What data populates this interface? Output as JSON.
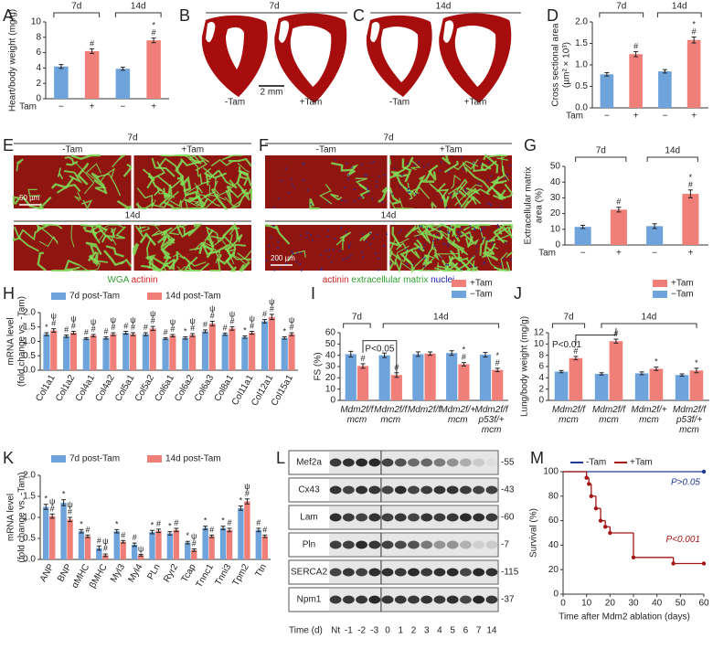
{
  "panel_labels": [
    "A",
    "B",
    "C",
    "D",
    "E",
    "F",
    "G",
    "H",
    "I",
    "J",
    "K",
    "L",
    "M"
  ],
  "hearts": [
    {
      "time": "7d",
      "scale": "2 mm",
      "labels": [
        "-Tam",
        "+Tam"
      ]
    },
    {
      "time": "14d",
      "labels": [
        "-Tam",
        "+Tam"
      ]
    }
  ],
  "micrographs": [
    {
      "time_top": "7d",
      "time_bottom": "14d",
      "columns": [
        "-Tam",
        "+Tam"
      ],
      "scale": "50 µm",
      "stain": [
        {
          "text": "WGA",
          "color": "#2e9e2e"
        },
        {
          "text": "actinin",
          "color": "#d02020"
        }
      ]
    },
    {
      "time_top": "7d",
      "time_bottom": "14d",
      "columns": [
        "-Tam",
        "+Tam"
      ],
      "scale": "200 µm",
      "stain": [
        {
          "text": "actinin",
          "color": "#d02020"
        },
        {
          "text": "extracellular matrix",
          "color": "#2e9e2e"
        },
        {
          "text": "nuclei",
          "color": "#2020b0"
        }
      ]
    }
  ],
  "blot": {
    "rows": [
      [
        "Mef2a",
        "-55"
      ],
      [
        "Cx43",
        "-43"
      ],
      [
        "Lam",
        "-60"
      ],
      [
        "Pln",
        "-7"
      ],
      [
        "SERCA2",
        "-115"
      ],
      [
        "Npm1",
        "-37"
      ]
    ],
    "x_label": "Time (d)",
    "lanes": [
      "Nt",
      "-1",
      "-2",
      "-3",
      "0",
      "1",
      "2",
      "3",
      "4",
      "5",
      "6",
      "7",
      "14"
    ]
  },
  "chart_data": [
    {
      "type": "bar",
      "y_label": [
        "Heart/body weight (mg/g)"
      ],
      "ylim": [
        0,
        10
      ],
      "yticks": [
        0,
        2,
        4,
        6,
        8,
        10
      ],
      "categories": [
        "−",
        "+",
        "−",
        "+"
      ],
      "x_row_label": "Tam",
      "groups": [
        "7d",
        "14d"
      ],
      "values": [
        4.2,
        6.2,
        3.9,
        7.6
      ],
      "errors": [
        0.25,
        0.3,
        0.2,
        0.3
      ],
      "annotations": [
        null,
        "#",
        null,
        "*#"
      ],
      "colors": [
        "#6fa3db",
        "#f07f7a",
        "#6fa3db",
        "#f07f7a"
      ]
    },
    {
      "type": "bar",
      "y_label": [
        "Cross sectional area",
        "(µm² × 10³)"
      ],
      "ylim": [
        0,
        2
      ],
      "yticks": [
        {
          "value": 0,
          "label": "0.0"
        },
        0.5,
        {
          "value": 1,
          "label": "1.0"
        },
        1.5,
        {
          "value": 2,
          "label": "2.0"
        }
      ],
      "categories": [
        "−",
        "+",
        "−",
        "+"
      ],
      "x_row_label": "Tam",
      "groups": [
        "7d",
        "14d"
      ],
      "values": [
        0.78,
        1.25,
        0.85,
        1.58
      ],
      "errors": [
        0.04,
        0.06,
        0.04,
        0.07
      ],
      "annotations": [
        null,
        "#",
        null,
        "*#"
      ],
      "colors": [
        "#6fa3db",
        "#f07f7a",
        "#6fa3db",
        "#f07f7a"
      ]
    },
    {
      "type": "bar",
      "y_label": [
        "Extracellular matrix",
        "area (%)"
      ],
      "ylim": [
        0,
        50
      ],
      "yticks": [
        0,
        10,
        20,
        30,
        40,
        50
      ],
      "categories": [
        "−",
        "+",
        "−",
        "+"
      ],
      "x_row_label": "Tam",
      "groups": [
        "7d",
        "14d"
      ],
      "values": [
        11.5,
        22.5,
        12,
        32.5
      ],
      "errors": [
        1,
        1.5,
        1.5,
        2.5
      ],
      "annotations": [
        null,
        "#",
        null,
        "*#"
      ],
      "colors": [
        "#6fa3db",
        "#f07f7a",
        "#6fa3db",
        "#f07f7a"
      ]
    },
    {
      "type": "bar",
      "y_label": [
        "mRNA level",
        "(fold change vs. -Tam)"
      ],
      "ylim": [
        0,
        2
      ],
      "yticks": [
        {
          "value": 0,
          "label": "0.0"
        },
        0.5,
        {
          "value": 1,
          "label": "1.0"
        },
        1.5,
        {
          "value": 2,
          "label": "2.0"
        }
      ],
      "categories": [
        "Col1a1",
        "Col1a2",
        "Col4a1",
        "Col4a2",
        "Col5a1",
        "Col5a2",
        "Col6a1",
        "Col6a2",
        "Col6a3",
        "Col8a1",
        "Col11a1",
        "Col12a1",
        "Col15a1"
      ],
      "series": [
        {
          "name": "7d post-Tam",
          "color": "#6fa3db",
          "values": [
            1.25,
            1.18,
            1.1,
            1.12,
            1.3,
            1.25,
            1.1,
            1.12,
            1.35,
            1.25,
            1.15,
            1.7,
            1.12
          ],
          "errors": [
            0.05,
            0.04,
            0.03,
            0.04,
            0.05,
            0.05,
            0.03,
            0.04,
            0.05,
            0.04,
            0.04,
            0.06,
            0.04
          ],
          "annotations": [
            "*",
            "#",
            "#",
            "#",
            "#",
            "#",
            "#",
            "*",
            "#",
            "#",
            "*",
            "#",
            "*"
          ]
        },
        {
          "name": "14d post-Tam",
          "color": "#f07f7a",
          "values": [
            1.38,
            1.3,
            1.2,
            1.25,
            1.25,
            1.45,
            1.2,
            1.22,
            1.62,
            1.45,
            1.3,
            1.85,
            1.25
          ],
          "errors": [
            0.06,
            0.05,
            0.04,
            0.05,
            0.05,
            0.07,
            0.04,
            0.05,
            0.08,
            0.06,
            0.05,
            0.09,
            0.05
          ],
          "annotations": [
            "ψ#",
            "ψ#",
            "ψ#",
            "ψ#",
            "ψ#",
            "ψ#",
            "ψ#",
            "ψ#",
            "ψ#",
            "ψ#",
            "ψ#",
            "ψ#",
            "ψ#"
          ]
        }
      ]
    },
    {
      "type": "bar",
      "y_label": [
        "FS (%)"
      ],
      "ylim": [
        0,
        60
      ],
      "yticks": [
        0,
        10,
        20,
        30,
        40,
        50,
        60
      ],
      "categories": [
        "Mdm2f/f mcm",
        "Mdm2f/f mcm",
        "Mdm2f/f",
        "Mdm2f/+ mcm",
        "Mdm2f/f p53f/+ mcm"
      ],
      "groups": [
        "7d",
        "14d"
      ],
      "bracket_label": "P<0.05",
      "series": [
        {
          "name": "−Tam",
          "color": "#6fa3db",
          "values": [
            41,
            40,
            41,
            42,
            40.5
          ],
          "errors": [
            2.5,
            2,
            2,
            2,
            2
          ]
        },
        {
          "name": "+Tam",
          "color": "#f07f7a",
          "values": [
            30.5,
            22.5,
            41.5,
            32,
            27
          ],
          "errors": [
            2,
            2,
            1.5,
            1.5,
            1.5
          ],
          "annotations": [
            "#",
            "#",
            null,
            "*#",
            "*#"
          ]
        }
      ]
    },
    {
      "type": "bar",
      "y_label": [
        "Lung/body weight (mg/g)"
      ],
      "ylim": [
        0,
        12
      ],
      "yticks": [
        0,
        2,
        4,
        6,
        8,
        10,
        12
      ],
      "categories": [
        "Mdm2f/f mcm",
        "Mdm2f/f mcm",
        "Mdm2f/+ mcm",
        "Mdm2f/f p53f/+ mcm"
      ],
      "groups": [
        "7d",
        "14d"
      ],
      "bracket_label": "P<0.01",
      "series": [
        {
          "name": "−Tam",
          "color": "#6fa3db",
          "values": [
            5.1,
            4.7,
            4.8,
            4.5
          ],
          "errors": [
            0.2,
            0.2,
            0.25,
            0.2
          ]
        },
        {
          "name": "+Tam",
          "color": "#f07f7a",
          "values": [
            7.5,
            10.5,
            5.6,
            5.3
          ],
          "errors": [
            0.3,
            0.35,
            0.3,
            0.4
          ],
          "annotations": [
            "#",
            "#",
            "*",
            "*"
          ]
        }
      ]
    },
    {
      "type": "bar",
      "y_label": [
        "mRNA level",
        "(fold change vs. -Tam)"
      ],
      "ylim": [
        0,
        2
      ],
      "yticks": [
        {
          "value": 0,
          "label": "0.0"
        },
        0.5,
        {
          "value": 1,
          "label": "1.0"
        },
        1.5,
        {
          "value": 2,
          "label": "2.0"
        }
      ],
      "categories": [
        "ANP",
        "BNP",
        "αMHC",
        "βMHC",
        "Myl3",
        "Myl4",
        "PLn",
        "Ryr2",
        "Tcap",
        "Tnnc1",
        "Tnni3",
        "Tpm2",
        "Ttn"
      ],
      "series": [
        {
          "name": "7d post-Tam",
          "color": "#6fa3db",
          "values": [
            1.25,
            1.35,
            0.67,
            0.27,
            0.67,
            0.35,
            0.65,
            0.62,
            0.4,
            0.75,
            0.75,
            1.22,
            0.7
          ],
          "errors": [
            0.06,
            0.07,
            0.04,
            0.05,
            0.04,
            0.04,
            0.04,
            0.04,
            0.03,
            0.04,
            0.04,
            0.05,
            0.04
          ],
          "annotations": [
            "*",
            "*",
            "*",
            "#",
            "*",
            "#",
            "*",
            "*",
            "*",
            "*",
            "*",
            "*",
            "#"
          ]
        },
        {
          "name": "14d post-Tam",
          "color": "#f07f7a",
          "values": [
            1.03,
            0.95,
            0.55,
            0.1,
            0.42,
            0.1,
            0.68,
            0.7,
            0.22,
            0.55,
            0.7,
            1.38,
            0.55
          ],
          "errors": [
            0.05,
            0.05,
            0.03,
            0.03,
            0.03,
            0.02,
            0.04,
            0.04,
            0.03,
            0.03,
            0.04,
            0.06,
            0.03
          ],
          "annotations": [
            "ψ#",
            "ψ#",
            "#",
            "ψ#",
            "#",
            "ψ",
            "#",
            "#",
            "ψ#",
            "#",
            "#",
            "ψ#",
            "#"
          ]
        }
      ]
    },
    {
      "type": "line",
      "step": true,
      "y_label": [
        "Survival (%)"
      ],
      "x_label": "Time after Mdm2 ablation (days)",
      "xlim": [
        0,
        60
      ],
      "xticks": [
        0,
        10,
        20,
        30,
        40,
        50,
        60
      ],
      "ylim": [
        0,
        100
      ],
      "yticks": [
        0,
        20,
        40,
        60,
        80,
        100
      ],
      "series": [
        {
          "name": "-Tam",
          "color": "#1f3a93",
          "x": [
            0,
            60
          ],
          "values": [
            100,
            100
          ],
          "p_value": "P>0.05"
        },
        {
          "name": "+Tam",
          "color": "#a31515",
          "x": [
            0,
            10,
            11,
            12,
            14,
            16,
            18,
            20,
            30,
            47,
            60
          ],
          "values": [
            100,
            95,
            90,
            80,
            70,
            60,
            55,
            50,
            30,
            25,
            25
          ],
          "p_value": "P<0.001"
        }
      ]
    }
  ]
}
